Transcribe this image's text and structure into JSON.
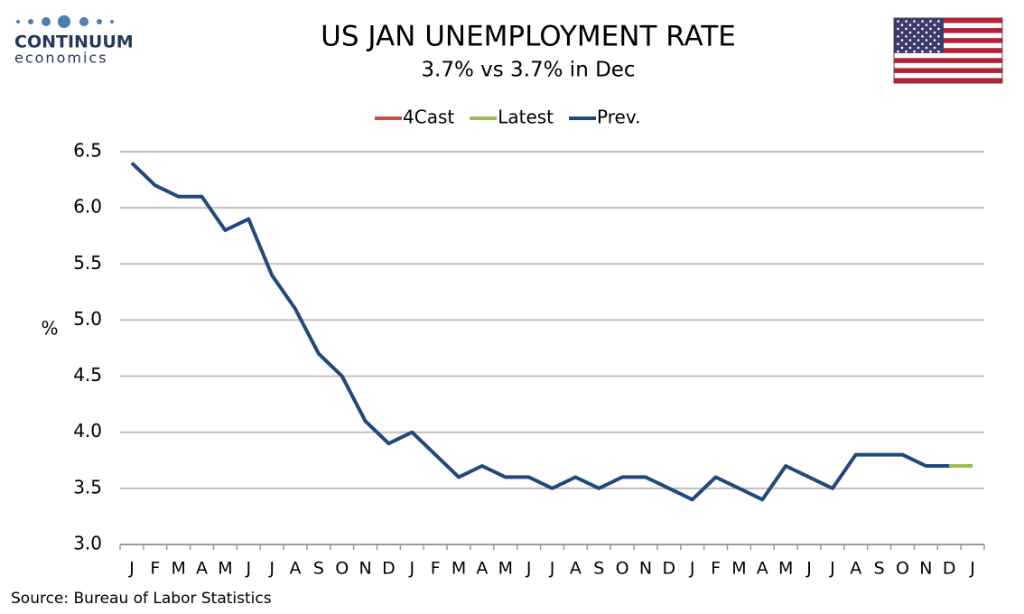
{
  "logo": {
    "name": "CONTINUUM",
    "sub": "economics"
  },
  "chart_data": {
    "type": "line",
    "title": "US JAN UNEMPLOYMENT RATE",
    "subtitle": "3.7% vs 3.7% in Dec",
    "ylabel": "%",
    "source": "Source: Bureau of Labor Statistics",
    "categories": [
      "J",
      "F",
      "M",
      "A",
      "M",
      "J",
      "J",
      "A",
      "S",
      "O",
      "N",
      "D",
      "J",
      "F",
      "M",
      "A",
      "M",
      "J",
      "J",
      "A",
      "S",
      "O",
      "N",
      "D",
      "J",
      "F",
      "M",
      "A",
      "M",
      "J",
      "J",
      "A",
      "S",
      "O",
      "N",
      "D",
      "J"
    ],
    "series": [
      {
        "name": "4Cast",
        "color": "#c0504d",
        "values": [
          null,
          null,
          null,
          null,
          null,
          null,
          null,
          null,
          null,
          null,
          null,
          null,
          null,
          null,
          null,
          null,
          null,
          null,
          null,
          null,
          null,
          null,
          null,
          null,
          null,
          null,
          null,
          null,
          null,
          null,
          null,
          null,
          null,
          null,
          null,
          null,
          null
        ]
      },
      {
        "name": "Latest",
        "color": "#9bbb59",
        "values": [
          null,
          null,
          null,
          null,
          null,
          null,
          null,
          null,
          null,
          null,
          null,
          null,
          null,
          null,
          null,
          null,
          null,
          null,
          null,
          null,
          null,
          null,
          null,
          null,
          null,
          null,
          null,
          null,
          null,
          null,
          null,
          null,
          null,
          null,
          null,
          3.7,
          3.7
        ]
      },
      {
        "name": "Prev.",
        "color": "#1f497d",
        "values": [
          6.4,
          6.2,
          6.1,
          6.1,
          5.8,
          5.9,
          5.4,
          5.1,
          4.7,
          4.5,
          4.1,
          3.9,
          4.0,
          3.8,
          3.6,
          3.7,
          3.6,
          3.6,
          3.5,
          3.6,
          3.5,
          3.6,
          3.6,
          3.5,
          3.4,
          3.6,
          3.5,
          3.4,
          3.7,
          3.6,
          3.5,
          3.8,
          3.8,
          3.8,
          3.7,
          3.7,
          null
        ]
      }
    ],
    "ylim": [
      3.0,
      6.5
    ],
    "yticks": [
      {
        "value": 3,
        "label": "3.0"
      },
      3.5,
      {
        "value": 4,
        "label": "4.0"
      },
      4.5,
      {
        "value": 5,
        "label": "5.0"
      },
      5.5,
      {
        "value": 6,
        "label": "6.0"
      },
      6.5
    ],
    "grid": true,
    "legend": "top"
  }
}
